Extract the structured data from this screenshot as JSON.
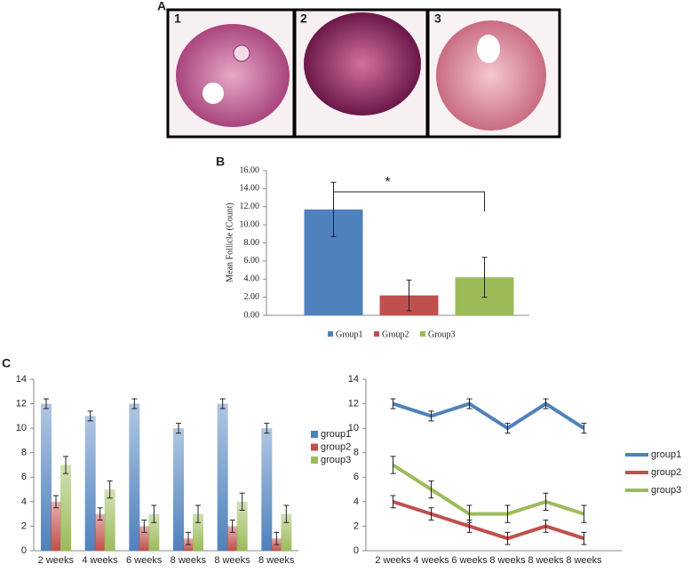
{
  "figure": {
    "panel_labels": [
      "A",
      "B",
      "C"
    ],
    "image_labels": [
      "1",
      "2",
      "3"
    ]
  },
  "chart_data": [
    {
      "type": "bar",
      "ylabel": "Mean Follicle (Count)",
      "categories": [
        "Group1",
        "Group2",
        "Group3"
      ],
      "values": [
        11.7,
        2.2,
        4.2
      ],
      "errors": [
        3.0,
        1.7,
        2.2
      ],
      "colors": [
        "#4f81bd",
        "#c0504d",
        "#9bbb59"
      ],
      "ylim": [
        0,
        16
      ],
      "yticks": [
        {
          "value": 0,
          "label": "0.00"
        },
        {
          "value": 2,
          "label": "2.00"
        },
        {
          "value": 4,
          "label": "4.00"
        },
        {
          "value": 6,
          "label": "6.00"
        },
        {
          "value": 8,
          "label": "8.00"
        },
        {
          "value": 10,
          "label": "10.00"
        },
        {
          "value": 12,
          "label": "12.00"
        },
        {
          "value": 14,
          "label": "14.00"
        },
        {
          "value": 16,
          "label": "16.00"
        }
      ],
      "annotation": "*",
      "legend": "bottom"
    },
    {
      "type": "grouped-bar",
      "categories": [
        "2 weeks",
        "4 weeks",
        "6 weeks",
        "8 weeks",
        "8 weeks",
        "8 weeks"
      ],
      "series": [
        {
          "name": "group1",
          "color": "#4f81bd",
          "values": [
            12,
            11,
            12,
            10,
            12,
            10
          ],
          "errors": [
            0.4,
            0.4,
            0.4,
            0.4,
            0.4,
            0.4
          ]
        },
        {
          "name": "group2",
          "color": "#c0504d",
          "values": [
            4,
            3,
            2,
            1,
            2,
            1
          ],
          "errors": [
            0.5,
            0.5,
            0.5,
            0.5,
            0.5,
            0.5
          ]
        },
        {
          "name": "group3",
          "color": "#9bbb59",
          "values": [
            7,
            5,
            3,
            3,
            4,
            3
          ],
          "errors": [
            0.7,
            0.7,
            0.7,
            0.7,
            0.7,
            0.7
          ]
        }
      ],
      "ylim": [
        0,
        14
      ],
      "yticks": [
        0,
        2,
        4,
        6,
        8,
        10,
        12,
        14
      ],
      "legend": "right"
    },
    {
      "type": "line",
      "categories": [
        "2 weeks",
        "4 weeks",
        "6 weeks",
        "8 weeks",
        "8 weeks",
        "8 weeks"
      ],
      "series": [
        {
          "name": "group1",
          "color": "#4f81bd",
          "values": [
            12,
            11,
            12,
            10,
            12,
            10
          ],
          "errors": [
            0.4,
            0.4,
            0.4,
            0.4,
            0.4,
            0.4
          ]
        },
        {
          "name": "group2",
          "color": "#c0504d",
          "values": [
            4,
            3,
            2,
            1,
            2,
            1
          ],
          "errors": [
            0.5,
            0.5,
            0.5,
            0.5,
            0.5,
            0.5
          ]
        },
        {
          "name": "group3",
          "color": "#9bbb59",
          "values": [
            7,
            5,
            3,
            3,
            4,
            3
          ],
          "errors": [
            0.7,
            0.7,
            0.7,
            0.7,
            0.7,
            0.7
          ]
        }
      ],
      "ylim": [
        0,
        14
      ],
      "yticks": [
        0,
        2,
        4,
        6,
        8,
        10,
        12,
        14
      ],
      "legend": "right"
    }
  ]
}
